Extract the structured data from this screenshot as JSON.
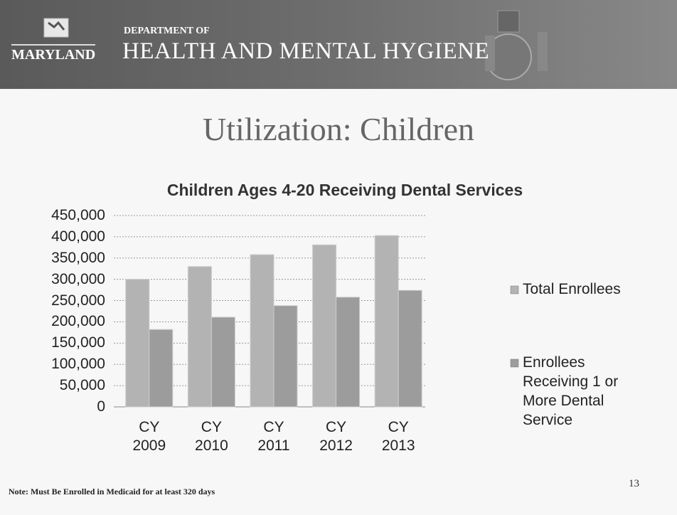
{
  "header": {
    "logo_text": "MARYLAND",
    "department": "DEPARTMENT OF",
    "agency": "HEALTH AND MENTAL HYGIENE"
  },
  "slide_title": "Utilization: Children",
  "chart_data": {
    "type": "bar",
    "title": "Children Ages 4-20 Receiving Dental Services",
    "categories": [
      "CY 2009",
      "CY 2010",
      "CY 2011",
      "CY 2012",
      "CY 2013"
    ],
    "series": [
      {
        "name": "Total Enrollees",
        "color": "#b3b3b3",
        "values": [
          300000,
          330000,
          358000,
          381000,
          403000
        ]
      },
      {
        "name": "Enrollees Receiving 1 or More Dental Service",
        "color": "#9c9c9c",
        "values": [
          182000,
          211000,
          238000,
          258000,
          274000
        ]
      }
    ],
    "ylim": [
      0,
      450000
    ],
    "yticks": [
      0,
      {
        "value": 50000,
        "label": "50,000"
      },
      {
        "value": 100000,
        "label": "100,000"
      },
      {
        "value": 150000,
        "label": "150,000"
      },
      {
        "value": 200000,
        "label": "200,000"
      },
      {
        "value": 250000,
        "label": "250,000"
      },
      {
        "value": 300000,
        "label": "300,000"
      },
      {
        "value": 350000,
        "label": "350,000"
      },
      {
        "value": 400000,
        "label": "400,000"
      },
      {
        "value": 450000,
        "label": "450,000"
      }
    ],
    "grid": true,
    "legend": "right"
  },
  "note": "Note:  Must Be Enrolled in Medicaid for at least 320 days",
  "page_number": 13
}
